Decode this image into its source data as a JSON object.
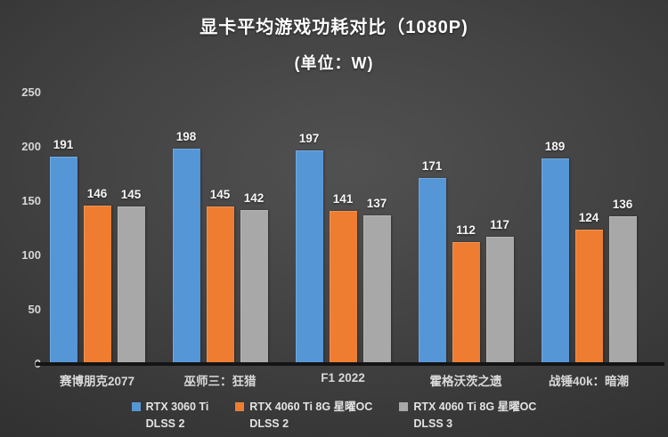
{
  "title": "显卡平均游戏功耗对比（1080P)",
  "subtitle": "(单位：W)",
  "chart_data": {
    "type": "bar",
    "title": "显卡平均游戏功耗对比（1080P)",
    "subtitle": "(单位：W)",
    "unit": "W",
    "categories": [
      "赛博朋克2077",
      "巫师三：狂猎",
      "F1 2022",
      "霍格沃茨之遗",
      "战锤40k：暗潮"
    ],
    "series": [
      {
        "name": "RTX 3060 Ti DLSS 2",
        "legend_lines": [
          "RTX 3060 Ti",
          "DLSS 2"
        ],
        "color": "#5596d7",
        "values": [
          191,
          198,
          197,
          171,
          189
        ]
      },
      {
        "name": "RTX 4060 Ti 8G 星曜OC DLSS 2",
        "legend_lines": [
          "RTX 4060 Ti 8G 星曜OC",
          "DLSS 2"
        ],
        "color": "#ee7d31",
        "values": [
          146,
          145,
          141,
          112,
          124
        ]
      },
      {
        "name": "RTX 4060 Ti 8G 星曜OC DLSS 3",
        "legend_lines": [
          "RTX 4060 Ti 8G 星曜OC",
          "DLSS 3"
        ],
        "color": "#a8a8a8",
        "values": [
          145,
          142,
          137,
          117,
          136
        ]
      }
    ],
    "yticks": [
      0,
      50,
      100,
      150,
      200,
      250
    ],
    "ylim": [
      0,
      250
    ],
    "grid": false,
    "legend_position": "bottom",
    "text_color": "#ffffff",
    "axis_line_color": "#141414"
  }
}
